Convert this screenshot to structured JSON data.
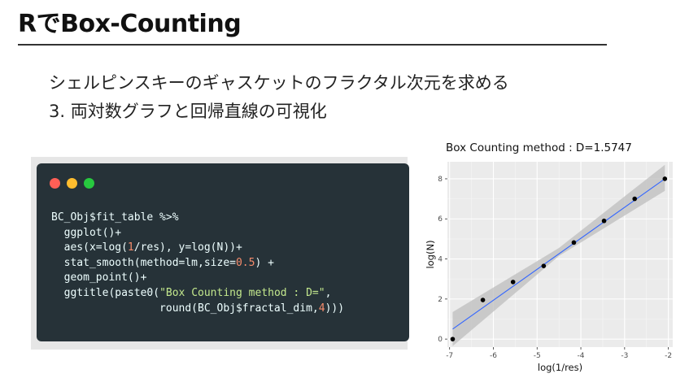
{
  "slide": {
    "title": "RでBox-Counting",
    "line1": "シェルピンスキーのギャスケットのフラクタル次元を求める",
    "line2": "3. 両対数グラフと回帰直線の可視化"
  },
  "code_window": {
    "buttons": [
      "red",
      "yellow",
      "green"
    ],
    "lines": [
      [
        {
          "t": "BC_Obj$fit_table %>%"
        }
      ],
      [
        {
          "t": "  ggplot()+"
        }
      ],
      [
        {
          "t": "  aes(x=log("
        },
        {
          "t": "1",
          "c": "num"
        },
        {
          "t": "/res), y=log(N))+"
        }
      ],
      [
        {
          "t": "  stat_smooth(method=lm,size="
        },
        {
          "t": "0.5",
          "c": "num"
        },
        {
          "t": ") +"
        }
      ],
      [
        {
          "t": "  geom_point()+"
        }
      ],
      [
        {
          "t": "  ggtitle(paste0("
        },
        {
          "t": "\"Box Counting method : D=\"",
          "c": "str"
        },
        {
          "t": ","
        }
      ],
      [
        {
          "t": "                 round(BC_Obj$fractal_dim,"
        },
        {
          "t": "4",
          "c": "num"
        },
        {
          "t": ")))"
        }
      ]
    ],
    "colors": {
      "background": "#263238",
      "text": "#eeffff",
      "number": "#f78c6c",
      "string": "#c3e88d"
    }
  },
  "chart_data": {
    "type": "scatter",
    "title": "Box Counting method : D=1.5747",
    "xlabel": "log(1/res)",
    "ylabel": "log(N)",
    "xlim": [
      -7.05,
      -1.9
    ],
    "ylim": [
      -0.4,
      8.85
    ],
    "xticks": [
      -7,
      -6,
      -5,
      -4,
      -3,
      -2
    ],
    "yticks": [
      0,
      2,
      4,
      6,
      8
    ],
    "grid": true,
    "points": [
      {
        "x": -6.93,
        "y": 0.0
      },
      {
        "x": -6.24,
        "y": 1.95
      },
      {
        "x": -5.55,
        "y": 2.85
      },
      {
        "x": -4.85,
        "y": 3.65
      },
      {
        "x": -4.16,
        "y": 4.82
      },
      {
        "x": -3.47,
        "y": 5.9
      },
      {
        "x": -2.77,
        "y": 7.0
      },
      {
        "x": -2.08,
        "y": 8.0
      }
    ],
    "fit_line": {
      "x": [
        -6.93,
        -2.08
      ],
      "y": [
        0.5,
        8.0
      ]
    },
    "confidence_band": {
      "x": [
        -6.93,
        -4.5,
        -2.08
      ],
      "lower": [
        -0.35,
        4.15,
        7.4
      ],
      "upper": [
        1.35,
        4.55,
        8.7
      ]
    },
    "colors": {
      "panel": "#ebebeb",
      "grid": "#ffffff",
      "line": "#3366ff",
      "band": "#bdbdbd",
      "point": "#000000"
    }
  }
}
